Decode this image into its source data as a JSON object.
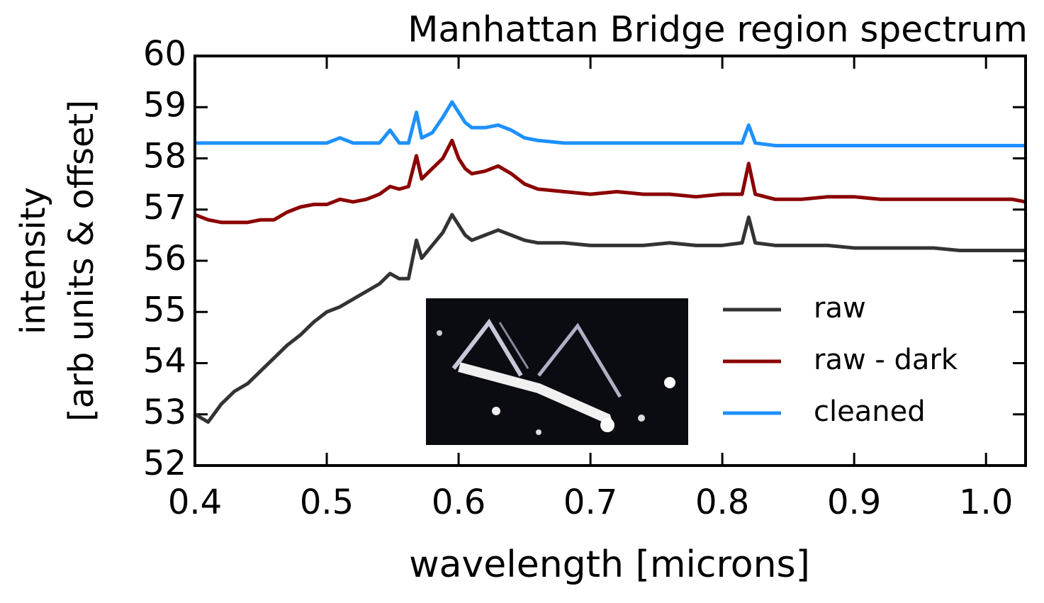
{
  "chart_data": {
    "type": "line",
    "title": "Manhattan Bridge region spectrum",
    "xlabel": "wavelength [microns]",
    "ylabel": [
      "intensity",
      "[arb units & offset]"
    ],
    "x": [
      0.4,
      0.41,
      0.42,
      0.43,
      0.44,
      0.45,
      0.46,
      0.47,
      0.48,
      0.49,
      0.5,
      0.51,
      0.52,
      0.53,
      0.54,
      0.548,
      0.555,
      0.562,
      0.568,
      0.572,
      0.58,
      0.588,
      0.595,
      0.6,
      0.605,
      0.61,
      0.62,
      0.63,
      0.64,
      0.65,
      0.66,
      0.68,
      0.7,
      0.72,
      0.74,
      0.76,
      0.78,
      0.8,
      0.815,
      0.82,
      0.825,
      0.84,
      0.86,
      0.88,
      0.9,
      0.92,
      0.94,
      0.96,
      0.98,
      1.0,
      1.02,
      1.03
    ],
    "series": [
      {
        "name": "raw",
        "color": "#333333",
        "values": [
          53.0,
          52.85,
          53.2,
          53.45,
          53.6,
          53.85,
          54.1,
          54.35,
          54.55,
          54.8,
          55.0,
          55.1,
          55.25,
          55.4,
          55.55,
          55.75,
          55.65,
          55.65,
          56.4,
          56.05,
          56.3,
          56.55,
          56.9,
          56.7,
          56.5,
          56.4,
          56.5,
          56.6,
          56.5,
          56.4,
          56.35,
          56.35,
          56.3,
          56.3,
          56.3,
          56.35,
          56.3,
          56.3,
          56.35,
          56.85,
          56.35,
          56.3,
          56.3,
          56.3,
          56.25,
          56.25,
          56.25,
          56.25,
          56.2,
          56.2,
          56.2,
          56.2
        ]
      },
      {
        "name": "raw - dark",
        "color": "#8b0000",
        "values": [
          56.9,
          56.8,
          56.75,
          56.75,
          56.75,
          56.8,
          56.8,
          56.95,
          57.05,
          57.1,
          57.1,
          57.2,
          57.15,
          57.2,
          57.3,
          57.45,
          57.4,
          57.45,
          58.05,
          57.6,
          57.8,
          58.0,
          58.35,
          58.0,
          57.8,
          57.7,
          57.75,
          57.85,
          57.7,
          57.5,
          57.4,
          57.35,
          57.3,
          57.35,
          57.3,
          57.3,
          57.25,
          57.3,
          57.3,
          57.9,
          57.3,
          57.2,
          57.2,
          57.25,
          57.25,
          57.2,
          57.2,
          57.2,
          57.2,
          57.2,
          57.2,
          57.15
        ]
      },
      {
        "name": "cleaned",
        "color": "#1e90ff",
        "values": [
          58.3,
          58.3,
          58.3,
          58.3,
          58.3,
          58.3,
          58.3,
          58.3,
          58.3,
          58.3,
          58.3,
          58.4,
          58.3,
          58.3,
          58.3,
          58.55,
          58.3,
          58.3,
          58.9,
          58.4,
          58.5,
          58.8,
          59.1,
          58.9,
          58.7,
          58.6,
          58.6,
          58.65,
          58.55,
          58.4,
          58.35,
          58.3,
          58.3,
          58.3,
          58.3,
          58.3,
          58.3,
          58.3,
          58.3,
          58.65,
          58.3,
          58.25,
          58.25,
          58.25,
          58.25,
          58.25,
          58.25,
          58.25,
          58.25,
          58.25,
          58.25,
          58.25
        ]
      }
    ],
    "xlim": [
      0.4,
      1.03
    ],
    "ylim": [
      52,
      60
    ],
    "xticks": [
      0.4,
      0.5,
      0.6,
      0.7,
      0.8,
      0.9,
      {
        "value": 1,
        "label": "1.0"
      }
    ],
    "yticks": [
      52,
      53,
      54,
      55,
      56,
      57,
      58,
      59,
      60
    ],
    "legend": "lower right"
  }
}
